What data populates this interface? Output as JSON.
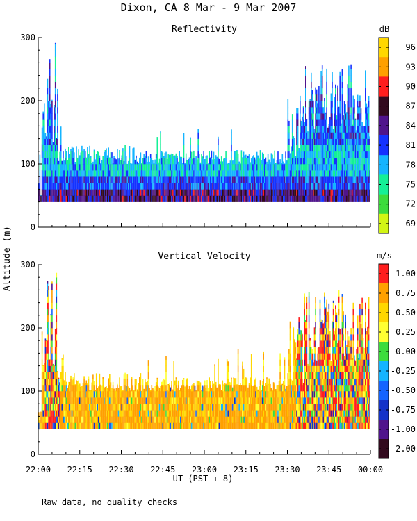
{
  "figure": {
    "title": "Dixon, CA  8 Mar -  9 Mar 2007",
    "ylabel": "Altitude  (m)",
    "xlabel": "UT  (PST + 8)",
    "footnote": "Raw data, no quality checks"
  },
  "chart_data": [
    {
      "type": "heatmap",
      "title": "Reflectivity",
      "xlabel": "UT  (PST + 8)",
      "ylabel": "Altitude  (m)",
      "x_ticks": [
        "22:00",
        "22:15",
        "22:30",
        "22:45",
        "23:00",
        "23:15",
        "23:30",
        "23:45",
        "00:00"
      ],
      "xlim_minutes": [
        0,
        120
      ],
      "y_ticks": [
        "0",
        "100",
        "200",
        "300"
      ],
      "ylim": [
        0,
        300
      ],
      "colorbar": {
        "unit": "dB",
        "labels": [
          "96",
          "93",
          "90",
          "87",
          "84",
          "81",
          "78",
          "75",
          "72",
          "69"
        ],
        "colors": [
          "#ffd700",
          "#ffa000",
          "#ff1e1e",
          "#320a1e",
          "#50148c",
          "#1432ff",
          "#14b4ff",
          "#14f096",
          "#3cdc3c",
          "#d2f514"
        ]
      },
      "data_extent": {
        "min_altitude_m": 40,
        "typical_top_m": 120,
        "max_top_m": 300,
        "note": "dense returns 40-120 m throughout; tall plumes near 22:05 and after 23:35"
      }
    },
    {
      "type": "heatmap",
      "title": "Vertical Velocity",
      "xlabel": "UT  (PST + 8)",
      "ylabel": "Altitude  (m)",
      "x_ticks": [
        "22:00",
        "22:15",
        "22:30",
        "22:45",
        "23:00",
        "23:15",
        "23:30",
        "23:45",
        "00:00"
      ],
      "xlim_minutes": [
        0,
        120
      ],
      "y_ticks": [
        "0",
        "100",
        "200",
        "300"
      ],
      "ylim": [
        0,
        300
      ],
      "colorbar": {
        "unit": "m/s",
        "labels": [
          "1.00",
          "0.75",
          "0.50",
          "0.25",
          "0.00",
          "-0.25",
          "-0.50",
          "-0.75",
          "-1.00",
          "-2.00"
        ],
        "colors": [
          "#ff1e1e",
          "#ffa000",
          "#ffd700",
          "#ffff32",
          "#3cdc3c",
          "#14b4ff",
          "#1464ff",
          "#1432c8",
          "#50148c",
          "#320a1e"
        ]
      },
      "data_extent": {
        "min_altitude_m": 40,
        "typical_top_m": 120,
        "max_top_m": 300,
        "note": "mostly 0.50 m/s (orange-yellow) 40-100 m; mixed updrafts/downdrafts near 22:05 and after 23:35"
      }
    }
  ]
}
